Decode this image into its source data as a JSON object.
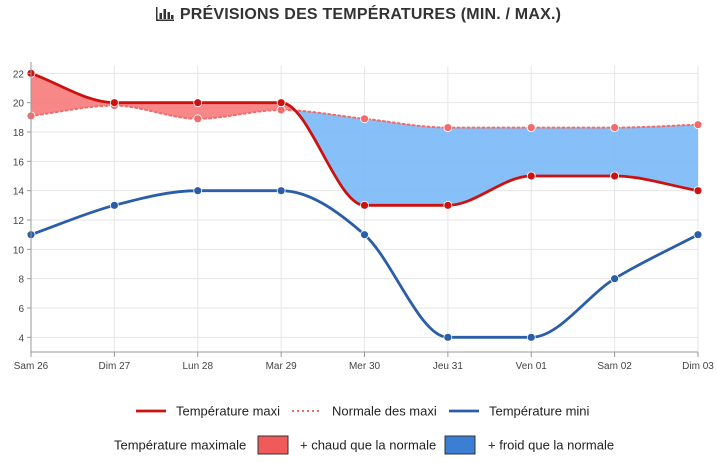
{
  "title": "PRÉVISIONS DES TEMPÉRATURES (MIN. / MAX.)",
  "title_icon": "bar-chart-icon",
  "chart_data": {
    "type": "line",
    "categories": [
      "Sam 26",
      "Dim 27",
      "Lun 28",
      "Mar 29",
      "Mer 30",
      "Jeu 31",
      "Ven 01",
      "Sam 02",
      "Dim 03"
    ],
    "ylim": [
      3,
      22.5
    ],
    "yticks": [
      4,
      6,
      8,
      10,
      12,
      14,
      16,
      18,
      20,
      22
    ],
    "grid": true,
    "series": [
      {
        "name": "Température maxi",
        "color": "#cc1111",
        "style": "solid",
        "values": [
          22,
          20,
          20,
          20,
          13,
          13,
          15,
          15,
          14
        ]
      },
      {
        "name": "Normale des maxi",
        "color": "#f06c6c",
        "style": "dotted",
        "values": [
          19.1,
          19.8,
          18.9,
          19.5,
          18.9,
          18.3,
          18.3,
          18.3,
          18.5
        ]
      },
      {
        "name": "Température mini",
        "color": "#2a5ea8",
        "style": "solid",
        "values": [
          11,
          13,
          14,
          14,
          11,
          4,
          4,
          8,
          11
        ]
      }
    ],
    "fills": {
      "warmer_color": "#f77b7b",
      "colder_color": "#7ab8f7"
    },
    "legend": {
      "placement": "bottom",
      "area_label": "Température maximale",
      "warmer_label": "+ chaud que la normale",
      "colder_label": "+ froid que la normale",
      "warmer_swatch": "#f05a5a",
      "colder_swatch": "#3a7fd4"
    }
  }
}
